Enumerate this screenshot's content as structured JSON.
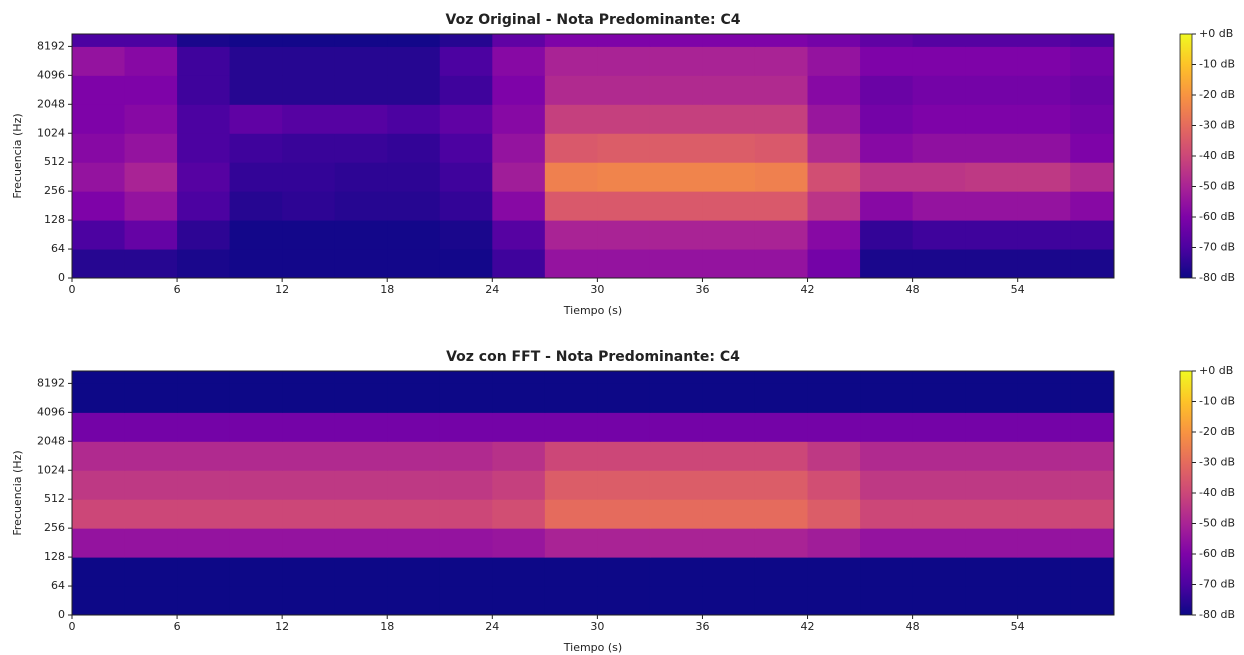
{
  "chart_data": [
    {
      "type": "heatmap",
      "title": "Voz Original - Nota Predominante: C4",
      "xlabel": "Tiempo (s)",
      "ylabel": "Frecuencia (Hz)",
      "colormap": "plasma",
      "yscale": "symlog",
      "linthresh": 64,
      "xlim": [
        0,
        59.5
      ],
      "xticks": [
        0,
        6,
        12,
        18,
        24,
        30,
        36,
        42,
        48,
        54
      ],
      "ylim": [
        0,
        11025
      ],
      "yticks": [
        0,
        64,
        128,
        256,
        512,
        1024,
        2048,
        4096,
        8192
      ],
      "x_bins": [
        0,
        3,
        6,
        9,
        12,
        15,
        18,
        21,
        24,
        27,
        30,
        33,
        36,
        39,
        42,
        45,
        48,
        51,
        54,
        57,
        59.5
      ],
      "y_bins": [
        0,
        64,
        128,
        256,
        512,
        1024,
        2048,
        4096,
        8192,
        11025
      ],
      "values": [
        [
          -76,
          -76,
          -78,
          -79,
          -79,
          -79,
          -79,
          -79,
          -72,
          -55,
          -55,
          -55,
          -55,
          -55,
          -62,
          -78,
          -78,
          -78,
          -78,
          -78
        ],
        [
          -70,
          -65,
          -75,
          -79,
          -79,
          -79,
          -79,
          -78,
          -68,
          -50,
          -50,
          -50,
          -50,
          -50,
          -58,
          -74,
          -72,
          -72,
          -72,
          -72
        ],
        [
          -60,
          -55,
          -70,
          -76,
          -75,
          -76,
          -76,
          -74,
          -58,
          -35,
          -35,
          -35,
          -35,
          -35,
          -45,
          -58,
          -55,
          -55,
          -55,
          -58
        ],
        [
          -55,
          -50,
          -68,
          -74,
          -74,
          -75,
          -75,
          -72,
          -52,
          -25,
          -24,
          -24,
          -24,
          -25,
          -38,
          -45,
          -45,
          -44,
          -44,
          -48
        ],
        [
          -58,
          -55,
          -70,
          -72,
          -73,
          -73,
          -74,
          -70,
          -55,
          -35,
          -34,
          -34,
          -34,
          -35,
          -48,
          -58,
          -56,
          -56,
          -56,
          -60
        ],
        [
          -60,
          -58,
          -70,
          -66,
          -68,
          -68,
          -70,
          -66,
          -58,
          -42,
          -42,
          -42,
          -42,
          -42,
          -54,
          -62,
          -60,
          -60,
          -60,
          -62
        ],
        [
          -60,
          -60,
          -72,
          -76,
          -76,
          -76,
          -76,
          -72,
          -60,
          -48,
          -48,
          -48,
          -48,
          -48,
          -58,
          -64,
          -62,
          -62,
          -62,
          -64
        ],
        [
          -55,
          -58,
          -72,
          -76,
          -76,
          -76,
          -76,
          -70,
          -58,
          -50,
          -50,
          -50,
          -50,
          -50,
          -55,
          -60,
          -60,
          -60,
          -60,
          -62
        ],
        [
          -70,
          -70,
          -78,
          -79,
          -79,
          -79,
          -79,
          -76,
          -66,
          -60,
          -60,
          -60,
          -60,
          -60,
          -62,
          -66,
          -68,
          -68,
          -68,
          -70
        ]
      ],
      "clim": [
        -80,
        0
      ],
      "colorbar_ticks": [
        {
          "value": 0,
          "label": "+0 dB"
        },
        {
          "value": -10,
          "label": "-10 dB"
        },
        {
          "value": -20,
          "label": "-20 dB"
        },
        {
          "value": -30,
          "label": "-30 dB"
        },
        {
          "value": -40,
          "label": "-40 dB"
        },
        {
          "value": -50,
          "label": "-50 dB"
        },
        {
          "value": -60,
          "label": "-60 dB"
        },
        {
          "value": -70,
          "label": "-70 dB"
        },
        {
          "value": -80,
          "label": "-80 dB"
        }
      ]
    },
    {
      "type": "heatmap",
      "title": "Voz con FFT - Nota Predominante: C4",
      "xlabel": "Tiempo (s)",
      "ylabel": "Frecuencia (Hz)",
      "colormap": "plasma",
      "yscale": "symlog",
      "linthresh": 64,
      "xlim": [
        0,
        59.5
      ],
      "xticks": [
        0,
        6,
        12,
        18,
        24,
        30,
        36,
        42,
        48,
        54
      ],
      "ylim": [
        0,
        11025
      ],
      "yticks": [
        0,
        64,
        128,
        256,
        512,
        1024,
        2048,
        4096,
        8192
      ],
      "x_bins": [
        0,
        3,
        6,
        9,
        12,
        15,
        18,
        21,
        24,
        27,
        30,
        33,
        36,
        39,
        42,
        45,
        48,
        51,
        54,
        57,
        59.5
      ],
      "y_bins": [
        0,
        64,
        128,
        256,
        512,
        1024,
        2048,
        4096,
        8192,
        11025
      ],
      "values": [
        [
          -80,
          -80,
          -80,
          -80,
          -80,
          -80,
          -80,
          -80,
          -80,
          -80,
          -80,
          -80,
          -80,
          -80,
          -80,
          -80,
          -80,
          -80,
          -80,
          -80
        ],
        [
          -80,
          -80,
          -80,
          -80,
          -80,
          -80,
          -80,
          -80,
          -80,
          -80,
          -80,
          -80,
          -80,
          -80,
          -80,
          -80,
          -80,
          -80,
          -80,
          -80
        ],
        [
          -55,
          -55,
          -55,
          -55,
          -55,
          -55,
          -55,
          -55,
          -54,
          -50,
          -50,
          -50,
          -50,
          -50,
          -52,
          -55,
          -55,
          -55,
          -55,
          -55
        ],
        [
          -40,
          -40,
          -40,
          -40,
          -40,
          -40,
          -40,
          -40,
          -38,
          -30,
          -30,
          -30,
          -30,
          -30,
          -34,
          -40,
          -40,
          -40,
          -40,
          -40
        ],
        [
          -44,
          -44,
          -44,
          -44,
          -44,
          -44,
          -44,
          -44,
          -42,
          -34,
          -34,
          -34,
          -34,
          -34,
          -38,
          -44,
          -44,
          -44,
          -44,
          -44
        ],
        [
          -48,
          -48,
          -48,
          -48,
          -48,
          -48,
          -48,
          -48,
          -46,
          -40,
          -40,
          -40,
          -40,
          -40,
          -44,
          -48,
          -48,
          -48,
          -48,
          -48
        ],
        [
          -62,
          -62,
          -62,
          -62,
          -62,
          -62,
          -62,
          -62,
          -62,
          -62,
          -62,
          -62,
          -62,
          -62,
          -62,
          -62,
          -62,
          -62,
          -62,
          -62
        ],
        [
          -80,
          -80,
          -80,
          -80,
          -80,
          -80,
          -80,
          -80,
          -80,
          -80,
          -80,
          -80,
          -80,
          -80,
          -80,
          -80,
          -80,
          -80,
          -80,
          -80
        ],
        [
          -80,
          -80,
          -80,
          -80,
          -80,
          -80,
          -80,
          -80,
          -80,
          -80,
          -80,
          -80,
          -80,
          -80,
          -80,
          -80,
          -80,
          -80,
          -80,
          -80
        ]
      ],
      "clim": [
        -80,
        0
      ],
      "colorbar_ticks": [
        {
          "value": 0,
          "label": "+0 dB"
        },
        {
          "value": -10,
          "label": "-10 dB"
        },
        {
          "value": -20,
          "label": "-20 dB"
        },
        {
          "value": -30,
          "label": "-30 dB"
        },
        {
          "value": -40,
          "label": "-40 dB"
        },
        {
          "value": -50,
          "label": "-50 dB"
        },
        {
          "value": -60,
          "label": "-60 dB"
        },
        {
          "value": -70,
          "label": "-70 dB"
        },
        {
          "value": -80,
          "label": "-80 dB"
        }
      ]
    }
  ]
}
